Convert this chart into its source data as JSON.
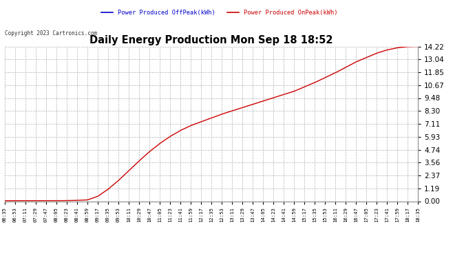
{
  "title": "Daily Energy Production Mon Sep 18 18:52",
  "copyright": "Copyright 2023 Cartronics.com",
  "legend_offpeak": "Power Produced OffPeak(kWh)",
  "legend_onpeak": "Power Produced OnPeak(kWh)",
  "legend_offpeak_color": "#0000cc",
  "legend_onpeak_color": "#cc0000",
  "line_color": "#cc0000",
  "background_color": "#ffffff",
  "grid_color": "#aaaaaa",
  "title_color": "#000000",
  "yticks": [
    0.0,
    1.19,
    2.37,
    3.56,
    4.74,
    5.93,
    7.11,
    8.3,
    9.48,
    10.67,
    11.85,
    13.04,
    14.22
  ],
  "xtick_labels": [
    "06:35",
    "06:53",
    "07:11",
    "07:29",
    "07:47",
    "08:05",
    "08:23",
    "08:41",
    "08:59",
    "09:17",
    "09:35",
    "09:53",
    "10:11",
    "10:29",
    "10:47",
    "11:05",
    "11:23",
    "11:41",
    "11:59",
    "12:17",
    "12:35",
    "12:53",
    "13:11",
    "13:29",
    "13:47",
    "14:05",
    "14:23",
    "14:41",
    "14:59",
    "15:17",
    "15:35",
    "15:53",
    "16:11",
    "16:29",
    "16:47",
    "17:05",
    "17:23",
    "17:41",
    "17:59",
    "18:17",
    "18:35"
  ],
  "ylim": [
    0.0,
    14.22
  ],
  "figsize": [
    6.9,
    3.75
  ],
  "dpi": 100,
  "curve_x": [
    0,
    1,
    2,
    3,
    4,
    5,
    6,
    7,
    8,
    9,
    10,
    11,
    12,
    13,
    14,
    15,
    16,
    17,
    18,
    19,
    20,
    21,
    22,
    23,
    24,
    25,
    26,
    27,
    28,
    29,
    30,
    31,
    32,
    33,
    34,
    35,
    36,
    37,
    38,
    39,
    40
  ],
  "curve_y": [
    0.05,
    0.05,
    0.05,
    0.05,
    0.05,
    0.05,
    0.06,
    0.08,
    0.12,
    0.45,
    1.1,
    1.9,
    2.8,
    3.7,
    4.55,
    5.3,
    5.95,
    6.5,
    6.95,
    7.3,
    7.65,
    8.0,
    8.3,
    8.6,
    8.9,
    9.2,
    9.5,
    9.8,
    10.1,
    10.5,
    10.9,
    11.35,
    11.8,
    12.3,
    12.8,
    13.2,
    13.6,
    13.9,
    14.1,
    14.2,
    14.22
  ]
}
